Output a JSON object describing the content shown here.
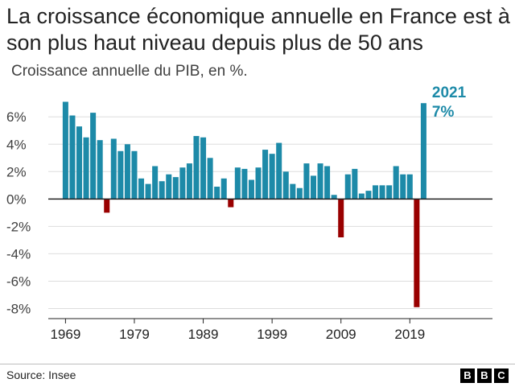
{
  "header": {
    "title": "La croissance économique annuelle en France est à son plus haut niveau depuis plus de 50 ans",
    "subtitle": "Croissance annuelle du PIB, en %."
  },
  "footer": {
    "source": "Source: Insee",
    "logo_letters": [
      "B",
      "B",
      "C"
    ]
  },
  "colors": {
    "positive": "#1d8aa8",
    "negative": "#990000",
    "highlight_text": "#1d8aa8",
    "grid": "#dddddd",
    "axis": "#222222"
  },
  "chart_data": {
    "type": "bar",
    "title": "La croissance économique annuelle en France est à son plus haut niveau depuis plus de 50 ans",
    "subtitle": "Croissance annuelle du PIB, en %.",
    "x": [
      1969,
      1970,
      1971,
      1972,
      1973,
      1974,
      1975,
      1976,
      1977,
      1978,
      1979,
      1980,
      1981,
      1982,
      1983,
      1984,
      1985,
      1986,
      1987,
      1988,
      1989,
      1990,
      1991,
      1992,
      1993,
      1994,
      1995,
      1996,
      1997,
      1998,
      1999,
      2000,
      2001,
      2002,
      2003,
      2004,
      2005,
      2006,
      2007,
      2008,
      2009,
      2010,
      2011,
      2012,
      2013,
      2014,
      2015,
      2016,
      2017,
      2018,
      2019,
      2020,
      2021
    ],
    "values": [
      7.1,
      6.1,
      5.3,
      4.5,
      6.3,
      4.3,
      -1.0,
      4.4,
      3.5,
      4.0,
      3.5,
      1.5,
      1.1,
      2.4,
      1.3,
      1.8,
      1.6,
      2.3,
      2.6,
      4.6,
      4.5,
      3.0,
      0.9,
      1.5,
      -0.6,
      2.3,
      2.2,
      1.4,
      2.3,
      3.6,
      3.3,
      4.1,
      2.0,
      1.1,
      0.8,
      2.6,
      1.7,
      2.6,
      2.4,
      0.3,
      -2.8,
      1.8,
      2.2,
      0.4,
      0.6,
      1.0,
      1.0,
      1.0,
      2.4,
      1.8,
      1.8,
      -7.9,
      7.0
    ],
    "y_ticks": [
      6,
      4,
      2,
      0,
      -2,
      -4,
      -6,
      -8
    ],
    "y_tick_labels": [
      "6%",
      "4%",
      "2%",
      "0%",
      "-2%",
      "-4%",
      "-6%",
      "-8%"
    ],
    "x_ticks": [
      1969,
      1979,
      1989,
      1999,
      2009,
      2019
    ],
    "x_tick_labels": [
      "1969",
      "1979",
      "1989",
      "1999",
      "2009",
      "2019"
    ],
    "ylim": [
      -8.5,
      7.6
    ],
    "xlim": [
      1966.5,
      2031
    ],
    "grid": true,
    "annotations": [
      {
        "x": 2021,
        "lines": [
          "2021",
          "7%"
        ]
      }
    ]
  }
}
